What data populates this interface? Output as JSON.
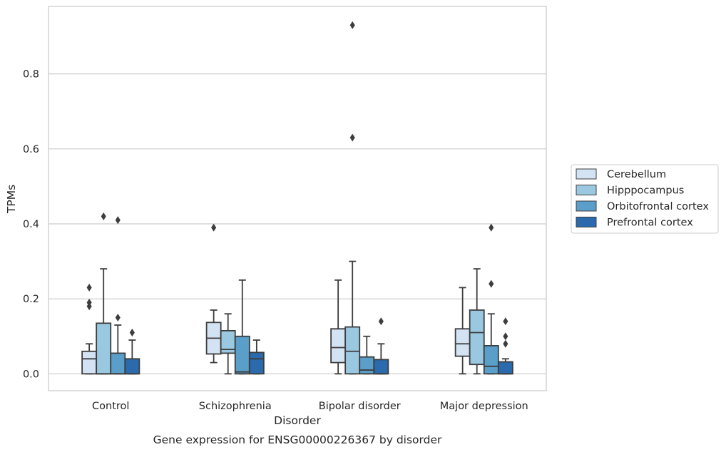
{
  "chart_data": {
    "type": "boxplot",
    "caption": "Gene expression for ENSG00000226367 by disorder",
    "xlabel": "Disorder",
    "ylabel": "TPMs",
    "ylim": [
      -0.045,
      0.98
    ],
    "yticks": [
      0.0,
      0.2,
      0.4,
      0.6,
      0.8
    ],
    "ytick_labels": [
      "0.0",
      "0.2",
      "0.4",
      "0.6",
      "0.8"
    ],
    "grid": "horizontal",
    "legend_position": "right",
    "categories": [
      "Control",
      "Schizophrenia",
      "Bipolar disorder",
      "Major depression"
    ],
    "series": [
      {
        "name": "Cerebellum",
        "color": "#d3e3f3",
        "boxes": [
          {
            "whisker_low": 0.0,
            "q1": 0.0,
            "median": 0.04,
            "q3": 0.06,
            "whisker_high": 0.08,
            "outliers": [
              0.18,
              0.19,
              0.23
            ]
          },
          {
            "whisker_low": 0.03,
            "q1": 0.053,
            "median": 0.095,
            "q3": 0.137,
            "whisker_high": 0.17,
            "outliers": [
              0.39
            ]
          },
          {
            "whisker_low": 0.0,
            "q1": 0.03,
            "median": 0.07,
            "q3": 0.12,
            "whisker_high": 0.25,
            "outliers": []
          },
          {
            "whisker_low": 0.0,
            "q1": 0.047,
            "median": 0.08,
            "q3": 0.12,
            "whisker_high": 0.23,
            "outliers": []
          }
        ]
      },
      {
        "name": "Hipppocampus",
        "color": "#9ac8e0",
        "boxes": [
          {
            "whisker_low": 0.0,
            "q1": 0.0,
            "median": 0.0,
            "q3": 0.135,
            "whisker_high": 0.28,
            "outliers": [
              0.42
            ]
          },
          {
            "whisker_low": 0.0,
            "q1": 0.055,
            "median": 0.065,
            "q3": 0.115,
            "whisker_high": 0.16,
            "outliers": []
          },
          {
            "whisker_low": 0.0,
            "q1": 0.0,
            "median": 0.06,
            "q3": 0.125,
            "whisker_high": 0.3,
            "outliers": [
              0.63,
              0.93
            ]
          },
          {
            "whisker_low": 0.0,
            "q1": 0.025,
            "median": 0.11,
            "q3": 0.17,
            "whisker_high": 0.28,
            "outliers": []
          }
        ]
      },
      {
        "name": "Orbitofrontal cortex",
        "color": "#5a9fca",
        "boxes": [
          {
            "whisker_low": 0.0,
            "q1": 0.0,
            "median": 0.0,
            "q3": 0.055,
            "whisker_high": 0.13,
            "outliers": [
              0.15,
              0.41
            ]
          },
          {
            "whisker_low": 0.0,
            "q1": 0.0,
            "median": 0.005,
            "q3": 0.1,
            "whisker_high": 0.25,
            "outliers": []
          },
          {
            "whisker_low": 0.0,
            "q1": 0.0,
            "median": 0.01,
            "q3": 0.045,
            "whisker_high": 0.1,
            "outliers": []
          },
          {
            "whisker_low": 0.0,
            "q1": 0.0,
            "median": 0.02,
            "q3": 0.075,
            "whisker_high": 0.16,
            "outliers": [
              0.24,
              0.39
            ]
          }
        ]
      },
      {
        "name": "Prefrontal cortex",
        "color": "#2a6aad",
        "boxes": [
          {
            "whisker_low": 0.0,
            "q1": 0.0,
            "median": 0.0,
            "q3": 0.04,
            "whisker_high": 0.09,
            "outliers": [
              0.11
            ]
          },
          {
            "whisker_low": 0.0,
            "q1": 0.0,
            "median": 0.04,
            "q3": 0.057,
            "whisker_high": 0.09,
            "outliers": []
          },
          {
            "whisker_low": 0.0,
            "q1": 0.0,
            "median": 0.0,
            "q3": 0.038,
            "whisker_high": 0.08,
            "outliers": [
              0.14
            ]
          },
          {
            "whisker_low": 0.0,
            "q1": 0.0,
            "median": 0.0,
            "q3": 0.032,
            "whisker_high": 0.04,
            "outliers": [
              0.08,
              0.1,
              0.14
            ]
          }
        ]
      }
    ]
  }
}
